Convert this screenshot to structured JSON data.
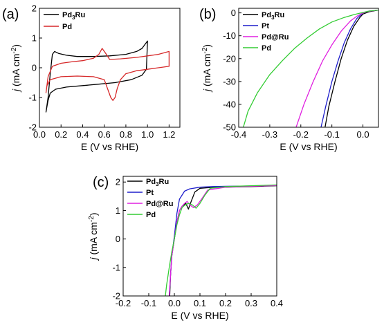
{
  "chart_data": [
    {
      "type": "line",
      "panel_label": "(a)",
      "xlabel": "E (V vs RHE)",
      "ylabel_main": "j",
      "ylabel_unit": "(mA cm",
      "ylabel_exp": "-2",
      "ylabel_close": ")",
      "xlim": [
        0.0,
        1.3
      ],
      "ylim": [
        -2,
        2
      ],
      "xticks": [
        "0.0",
        "0.2",
        "0.4",
        "0.6",
        "0.8",
        "1.0",
        "1.2"
      ],
      "yticks": [
        "-2",
        "-1",
        "0",
        "1",
        "2"
      ],
      "legend_position": "top-left",
      "series": [
        {
          "legend": "Pd3Ru",
          "legend_base": "Pd",
          "legend_sub": "3",
          "legend_tail": "Ru",
          "color": "#000000",
          "x": [
            0.06,
            0.08,
            0.1,
            0.12,
            0.14,
            0.18,
            0.25,
            0.35,
            0.5,
            0.65,
            0.8,
            0.9,
            0.95,
            1.0,
            0.99,
            0.95,
            0.85,
            0.7,
            0.55,
            0.4,
            0.25,
            0.15,
            0.1,
            0.08,
            0.07,
            0.06
          ],
          "y": [
            -1.5,
            -1.0,
            -0.2,
            0.45,
            0.55,
            0.48,
            0.42,
            0.38,
            0.38,
            0.4,
            0.45,
            0.55,
            0.65,
            0.9,
            -0.05,
            -0.25,
            -0.4,
            -0.5,
            -0.55,
            -0.6,
            -0.65,
            -0.72,
            -0.85,
            -1.1,
            -1.3,
            -1.5
          ]
        },
        {
          "legend": "Pd",
          "legend_base": "Pd",
          "legend_sub": "",
          "legend_tail": "",
          "color": "#d62728",
          "x": [
            0.06,
            0.08,
            0.12,
            0.2,
            0.3,
            0.4,
            0.5,
            0.55,
            0.58,
            0.61,
            0.65,
            0.75,
            0.9,
            1.0,
            1.1,
            1.2,
            1.2,
            1.1,
            1.0,
            0.9,
            0.8,
            0.75,
            0.72,
            0.7,
            0.68,
            0.66,
            0.63,
            0.6,
            0.5,
            0.35,
            0.2,
            0.1,
            0.07,
            0.06
          ],
          "y": [
            -0.85,
            -0.3,
            0.05,
            0.15,
            0.2,
            0.24,
            0.32,
            0.45,
            0.65,
            0.5,
            0.28,
            0.3,
            0.35,
            0.4,
            0.45,
            0.55,
            0.05,
            0.0,
            -0.05,
            -0.1,
            -0.2,
            -0.4,
            -0.7,
            -1.0,
            -1.1,
            -1.0,
            -0.7,
            -0.4,
            -0.3,
            -0.28,
            -0.3,
            -0.4,
            -0.6,
            -0.85
          ]
        }
      ]
    },
    {
      "type": "line",
      "panel_label": "(b)",
      "xlabel": "E (V vs RHE)",
      "ylabel_main": "j",
      "ylabel_unit": "(mA cm",
      "ylabel_exp": "-2",
      "ylabel_close": ")",
      "xlim": [
        -0.4,
        0.05
      ],
      "ylim": [
        -50,
        2
      ],
      "xticks": [
        "-0.4",
        "-0.3",
        "-0.2",
        "-0.1",
        "0.0"
      ],
      "yticks": [
        "-50",
        "-40",
        "-30",
        "-20",
        "-10",
        "0"
      ],
      "legend_position": "top-left",
      "series": [
        {
          "legend": "Pd3Ru",
          "legend_base": "Pd",
          "legend_sub": "3",
          "legend_tail": "Ru",
          "color": "#000000",
          "x": [
            -0.122,
            -0.11,
            -0.09,
            -0.07,
            -0.05,
            -0.03,
            -0.01,
            0.0,
            0.02,
            0.04,
            0.05
          ],
          "y": [
            -50,
            -41,
            -30,
            -20,
            -12,
            -6,
            -2,
            -0.5,
            0.5,
            1.0,
            1.2
          ]
        },
        {
          "legend": "Pt",
          "legend_base": "Pt",
          "legend_sub": "",
          "legend_tail": "",
          "color": "#1f1fcc",
          "x": [
            -0.135,
            -0.12,
            -0.1,
            -0.08,
            -0.06,
            -0.04,
            -0.02,
            0.0,
            0.02,
            0.04,
            0.05
          ],
          "y": [
            -50,
            -41,
            -30,
            -21,
            -13,
            -7,
            -2.5,
            0.0,
            0.8,
            1.1,
            1.2
          ]
        },
        {
          "legend": "Pd@Ru",
          "legend_base": "Pd@Ru",
          "legend_sub": "",
          "legend_tail": "",
          "color": "#e020e0",
          "x": [
            -0.215,
            -0.19,
            -0.16,
            -0.13,
            -0.1,
            -0.07,
            -0.04,
            -0.02,
            0.0,
            0.02,
            0.04,
            0.05
          ],
          "y": [
            -50,
            -40,
            -30,
            -21,
            -14,
            -8,
            -3.5,
            -1.5,
            0.0,
            0.7,
            1.1,
            1.2
          ]
        },
        {
          "legend": "Pd",
          "legend_base": "Pd",
          "legend_sub": "",
          "legend_tail": "",
          "color": "#33cc33",
          "x": [
            -0.385,
            -0.37,
            -0.34,
            -0.3,
            -0.26,
            -0.22,
            -0.18,
            -0.14,
            -0.1,
            -0.06,
            -0.03,
            0.0,
            0.02,
            0.04,
            0.05
          ],
          "y": [
            -50,
            -43,
            -35,
            -27,
            -21,
            -15.5,
            -11,
            -7,
            -4,
            -2,
            -0.8,
            0.2,
            0.8,
            1.1,
            1.2
          ]
        }
      ]
    },
    {
      "type": "line",
      "panel_label": "(c)",
      "xlabel": "E (V vs RHE)",
      "ylabel_main": "j",
      "ylabel_unit": "(mA cm",
      "ylabel_exp": "-2",
      "ylabel_close": ")",
      "xlim": [
        -0.2,
        0.4
      ],
      "ylim": [
        -2,
        2.2
      ],
      "xticks": [
        "-0.2",
        "-0.1",
        "0.0",
        "0.1",
        "0.2",
        "0.3",
        "0.4"
      ],
      "yticks": [
        "-2",
        "-1",
        "0",
        "1",
        "2"
      ],
      "legend_position": "top-left",
      "series": [
        {
          "legend": "Pd3Ru",
          "legend_base": "Pd",
          "legend_sub": "3",
          "legend_tail": "Ru",
          "color": "#000000",
          "x": [
            -0.018,
            -0.015,
            -0.01,
            0.0,
            0.01,
            0.02,
            0.03,
            0.045,
            0.055,
            0.065,
            0.08,
            0.1,
            0.13,
            0.2,
            0.3,
            0.4
          ],
          "y": [
            -2.0,
            -1.3,
            -0.6,
            0.0,
            0.6,
            1.0,
            1.15,
            1.25,
            1.05,
            1.3,
            1.65,
            1.78,
            1.8,
            1.82,
            1.84,
            1.87
          ]
        },
        {
          "legend": "Pt",
          "legend_base": "Pt",
          "legend_sub": "",
          "legend_tail": "",
          "color": "#1f1fcc",
          "x": [
            -0.02,
            -0.015,
            -0.01,
            0.0,
            0.01,
            0.02,
            0.04,
            0.06,
            0.1,
            0.15,
            0.2,
            0.3,
            0.4
          ],
          "y": [
            -2.0,
            -1.3,
            -0.6,
            0.1,
            0.9,
            1.4,
            1.68,
            1.76,
            1.82,
            1.84,
            1.85,
            1.86,
            1.88
          ]
        },
        {
          "legend": "Pd@Ru",
          "legend_base": "Pd@Ru",
          "legend_sub": "",
          "legend_tail": "",
          "color": "#e020e0",
          "x": [
            -0.02,
            -0.015,
            -0.01,
            0.0,
            0.01,
            0.02,
            0.03,
            0.04,
            0.05,
            0.06,
            0.075,
            0.09,
            0.11,
            0.13,
            0.2,
            0.3,
            0.4
          ],
          "y": [
            -2.0,
            -1.3,
            -0.6,
            0.0,
            0.6,
            1.0,
            1.15,
            1.25,
            1.32,
            1.2,
            1.1,
            1.2,
            1.45,
            1.72,
            1.82,
            1.85,
            1.88
          ]
        },
        {
          "legend": "Pd",
          "legend_base": "Pd",
          "legend_sub": "",
          "legend_tail": "",
          "color": "#33cc33",
          "x": [
            -0.035,
            -0.03,
            -0.02,
            -0.01,
            0.0,
            0.01,
            0.02,
            0.03,
            0.04,
            0.055,
            0.07,
            0.085,
            0.1,
            0.12,
            0.14,
            0.2,
            0.3,
            0.4
          ],
          "y": [
            -2.0,
            -1.6,
            -1.0,
            -0.45,
            0.0,
            0.5,
            0.85,
            1.1,
            1.18,
            1.25,
            1.2,
            1.08,
            1.25,
            1.55,
            1.78,
            1.84,
            1.87,
            1.9
          ]
        }
      ]
    }
  ]
}
